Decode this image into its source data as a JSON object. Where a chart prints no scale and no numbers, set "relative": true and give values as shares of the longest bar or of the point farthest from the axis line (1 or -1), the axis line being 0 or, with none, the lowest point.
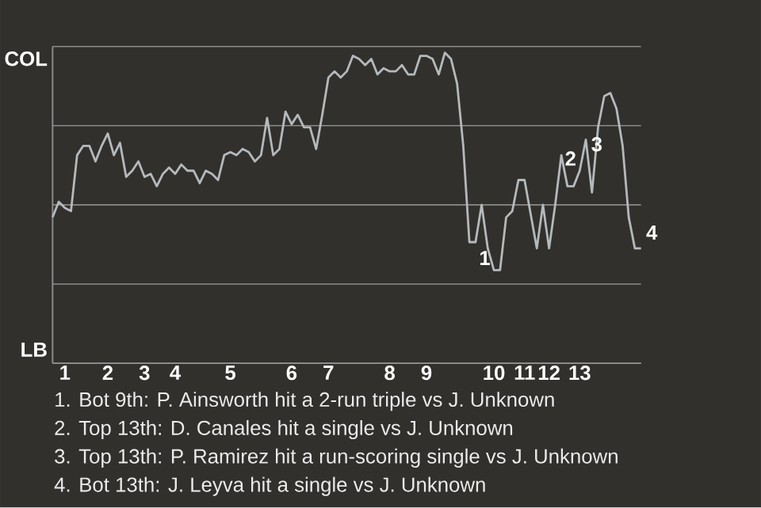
{
  "chart_data": {
    "type": "line",
    "relative": true,
    "categories": [
      null,
      null,
      "1",
      null,
      null,
      null,
      null,
      null,
      null,
      "2",
      null,
      null,
      null,
      null,
      null,
      "3",
      null,
      null,
      null,
      null,
      "4",
      null,
      null,
      null,
      null,
      null,
      null,
      null,
      null,
      "5",
      null,
      null,
      null,
      null,
      null,
      null,
      null,
      null,
      null,
      "6",
      null,
      null,
      null,
      null,
      null,
      "7",
      null,
      null,
      null,
      null,
      null,
      null,
      null,
      null,
      null,
      "8",
      null,
      null,
      null,
      null,
      null,
      "9",
      null,
      null,
      null,
      null,
      null,
      null,
      null,
      null,
      null,
      null,
      "10",
      null,
      null,
      null,
      null,
      "11",
      null,
      null,
      null,
      "12",
      null,
      null,
      null,
      null,
      "13",
      null,
      null,
      null,
      null,
      null,
      null,
      null,
      null,
      null,
      null
    ],
    "grid": "y",
    "series": [
      {
        "color": "#b4b9bc",
        "values": [
          0.47,
          0.52,
          0.5,
          0.49,
          0.67,
          0.7,
          0.7,
          0.65,
          0.7,
          0.74,
          0.67,
          0.71,
          0.6,
          0.62,
          0.65,
          0.6,
          0.61,
          0.57,
          0.61,
          0.63,
          0.61,
          0.64,
          0.62,
          0.62,
          0.58,
          0.62,
          0.61,
          0.59,
          0.67,
          0.68,
          0.67,
          0.69,
          0.68,
          0.65,
          0.67,
          0.79,
          0.67,
          0.69,
          0.81,
          0.77,
          0.8,
          0.76,
          0.76,
          0.69,
          0.8,
          0.92,
          0.94,
          0.92,
          0.94,
          0.99,
          0.98,
          0.96,
          0.98,
          0.93,
          0.95,
          0.94,
          0.94,
          0.96,
          0.93,
          0.93,
          0.99,
          0.99,
          0.98,
          0.93,
          1,
          0.98,
          0.9,
          0.7,
          0.39,
          0.39,
          0.51,
          0.37,
          0.3,
          0.3,
          0.47,
          0.49,
          0.59,
          0.59,
          0.48,
          0.37,
          0.51,
          0.37,
          0.51,
          0.67,
          0.57,
          0.57,
          0.62,
          0.72,
          0.55,
          0.76,
          0.86,
          0.87,
          0.82,
          0.7,
          0.47,
          0.37,
          0.37
        ]
      }
    ],
    "annotations": [
      "COL",
      "LB",
      {
        "text": "1",
        "x": "10",
        "y": 0.3
      },
      {
        "text": "2",
        "x": "13",
        "y": 0.62
      },
      {
        "text": "3",
        "x": "13",
        "y": 0.62
      },
      "4",
      "1. Bot 9th: P. Ainsworth hit a 2-run triple vs J. Unknown",
      "2. Top 13th: D. Canales hit a single vs J. Unknown",
      "3. Top 13th: P. Ramirez hit a run-scoring single vs J. Unknown",
      "4. Bot 13th: J. Leyva hit a single vs J. Unknown"
    ]
  }
}
